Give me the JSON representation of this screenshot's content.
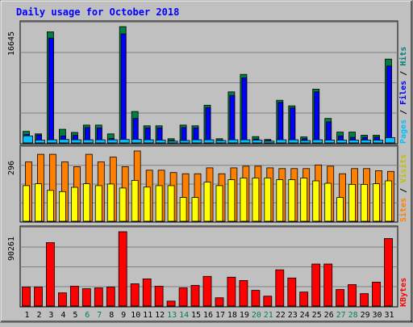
{
  "chart_data": {
    "type": "bar",
    "title": "Daily usage for October 2018",
    "categories": [
      "1",
      "2",
      "3",
      "4",
      "5",
      "6",
      "7",
      "8",
      "9",
      "10",
      "11",
      "12",
      "13",
      "14",
      "15",
      "16",
      "17",
      "18",
      "19",
      "20",
      "21",
      "22",
      "23",
      "24",
      "25",
      "26",
      "27",
      "28",
      "29",
      "30",
      "31"
    ],
    "weekend_days": [
      "6",
      "7",
      "13",
      "14",
      "20",
      "21",
      "27",
      "28"
    ],
    "panels": [
      {
        "id": "hits",
        "ymax": 16645,
        "ymax_label": "16645",
        "ylabel_parts": [
          "Pages",
          "Files",
          "Hits"
        ],
        "series": [
          {
            "name": "Hits",
            "color": "#008040",
            "values": [
              1650,
              1300,
              15900,
              1950,
              1500,
              2550,
              2550,
              1300,
              16645,
              4500,
              2450,
              2450,
              600,
              2550,
              2450,
              5400,
              600,
              7300,
              9800,
              900,
              500,
              6100,
              5300,
              850,
              7700,
              3500,
              1550,
              1550,
              1100,
              1100,
              12000
            ]
          },
          {
            "name": "Files",
            "color": "#0000ff",
            "values": [
              1200,
              1150,
              15000,
              1000,
              1100,
              2200,
              2150,
              650,
              15600,
              3500,
              2150,
              2150,
              350,
              2200,
              2150,
              5050,
              400,
              6800,
              9300,
              550,
              350,
              5800,
              5000,
              600,
              7300,
              3000,
              1000,
              800,
              800,
              850,
              11000
            ]
          },
          {
            "name": "Pages",
            "color": "#00c0ff",
            "values": [
              1000,
              400,
              450,
              500,
              450,
              450,
              450,
              450,
              500,
              500,
              450,
              400,
              250,
              350,
              450,
              450,
              350,
              450,
              450,
              400,
              250,
              450,
              450,
              350,
              450,
              400,
              400,
              400,
              400,
              400,
              750
            ]
          }
        ]
      },
      {
        "id": "visits",
        "ymax": 296,
        "ymax_label": "296",
        "ylabel_parts": [
          "Sites",
          "Visits"
        ],
        "series": [
          {
            "name": "Visits",
            "color": "#ff8000",
            "values": [
              250,
              282,
              282,
              250,
              230,
              282,
              250,
              270,
              230,
              296,
              215,
              215,
              205,
              200,
              200,
              225,
              200,
              225,
              232,
              232,
              225,
              222,
              222,
              222,
              237,
              232,
              200,
              222,
              222,
              213,
              210
            ]
          },
          {
            "name": "Sites",
            "color": "#ffff00",
            "values": [
              150,
              158,
              130,
              125,
              143,
              158,
              150,
              157,
              140,
              172,
              144,
              150,
              150,
              100,
              100,
              165,
              150,
              175,
              182,
              182,
              182,
              175,
              175,
              182,
              170,
              160,
              100,
              155,
              155,
              158,
              170
            ]
          }
        ]
      },
      {
        "id": "kbytes",
        "ymax": 90261,
        "ymax_label": "90261",
        "ylabel_parts": [
          "KBytes"
        ],
        "series": [
          {
            "name": "KBytes",
            "color": "#ff0000",
            "values": [
              23000,
              23000,
              77000,
              16000,
              24000,
              21000,
              22000,
              23000,
              90261,
              27000,
              33000,
              24000,
              6000,
              22000,
              25000,
              36000,
              10000,
              35000,
              31000,
              19000,
              12000,
              44000,
              34000,
              17000,
              51000,
              51000,
              20000,
              26000,
              15000,
              29000,
              82000
            ]
          }
        ]
      }
    ]
  }
}
